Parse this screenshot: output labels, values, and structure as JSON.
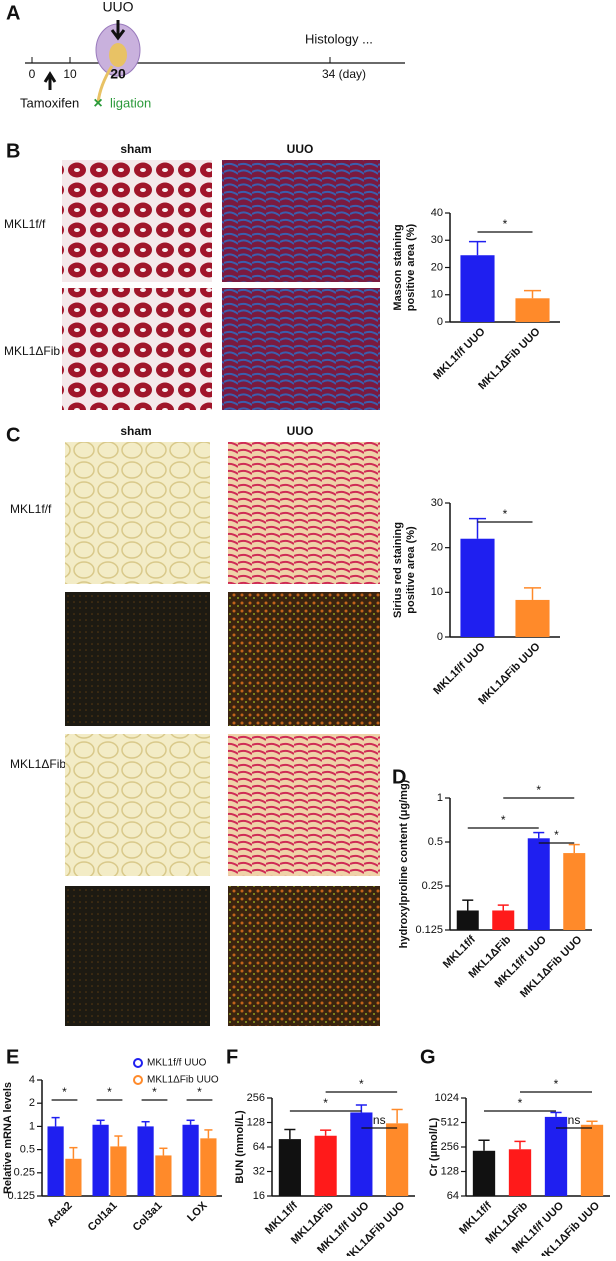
{
  "figure": {
    "panel_labels": [
      "A",
      "B",
      "C",
      "D",
      "E",
      "F",
      "G"
    ],
    "timeline": {
      "event": "UUO",
      "ticks": [
        "0",
        "10",
        "20",
        "34 (day)"
      ],
      "endpoint": "Histology ...",
      "treatment": "Tamoxifen",
      "procedure": "ligation"
    },
    "micrographs": {
      "columns": [
        "sham",
        "UUO"
      ],
      "rows": [
        "MKL1f/f",
        "MKL1ΔFib"
      ]
    }
  },
  "chart_data": [
    {
      "type": "bar",
      "y_label": [
        "Masson staining",
        "positive area (%)"
      ],
      "categories": [
        "MKL1f/f UUO",
        "MKL1ΔFib UUO"
      ],
      "values": [
        24.5,
        8.7
      ],
      "errors": [
        5,
        2.8
      ],
      "colors": [
        "#1f1ff0",
        "#ff8a2a"
      ],
      "ylim": [
        0,
        40
      ],
      "yticks": [
        0,
        10,
        20,
        30,
        40
      ],
      "annotations": [
        "*"
      ]
    },
    {
      "type": "bar",
      "y_label": [
        "Sirius red staining",
        "positive area (%)"
      ],
      "categories": [
        "MKL1f/f UUO",
        "MKL1ΔFib UUO"
      ],
      "values": [
        22,
        8.3
      ],
      "errors": [
        4.5,
        2.7
      ],
      "colors": [
        "#1f1ff0",
        "#ff8a2a"
      ],
      "ylim": [
        0,
        30
      ],
      "yticks": [
        0,
        10,
        20,
        30
      ],
      "annotations": [
        "*"
      ]
    },
    {
      "type": "bar",
      "y_label": [
        "hydroxylproline content (μg/mg)"
      ],
      "log_base": 2,
      "categories": [
        "MKL1f/f",
        "MKL1ΔFib",
        "MKL1f/f UUO",
        "MKL1ΔFib UUO"
      ],
      "values": [
        0.17,
        0.17,
        0.53,
        0.42
      ],
      "errors": [
        0.03,
        0.015,
        0.05,
        0.06
      ],
      "colors": [
        "#111111",
        "#ff1a1a",
        "#1f1ff0",
        "#ff8a2a"
      ],
      "ylim": [
        0.125,
        1
      ],
      "yticks": [
        0.125,
        0.25,
        0.5,
        1
      ],
      "annotations": [
        "*",
        "*",
        "*"
      ]
    },
    {
      "type": "grouped-bar",
      "y_label": [
        "Relative mRNA levels"
      ],
      "log_base": 2,
      "categories": [
        "Acta2",
        "Col1a1",
        "Col3a1",
        "LOX"
      ],
      "series": [
        {
          "name": "MKL1f/f UUO",
          "color": "#1f1ff0",
          "values": [
            1.0,
            1.05,
            1.0,
            1.05
          ],
          "errors": [
            0.3,
            0.15,
            0.15,
            0.15
          ]
        },
        {
          "name": "MKL1ΔFib UUO",
          "color": "#ff8a2a",
          "values": [
            0.38,
            0.55,
            0.42,
            0.7
          ],
          "errors": [
            0.15,
            0.2,
            0.1,
            0.2
          ]
        }
      ],
      "ylim": [
        0.125,
        4
      ],
      "yticks": [
        0.125,
        0.25,
        0.5,
        1,
        2,
        4
      ],
      "annotations": [
        "*",
        "*",
        "*",
        "*"
      ]
    },
    {
      "type": "bar",
      "y_label": [
        "BUN (mmol/L)"
      ],
      "log_base": 2,
      "categories": [
        "MKL1f/f",
        "MKL1ΔFib",
        "MKL1f/f UUO",
        "MKL1ΔFib UUO"
      ],
      "values": [
        80,
        88,
        170,
        125
      ],
      "errors": [
        25,
        15,
        40,
        60
      ],
      "colors": [
        "#111111",
        "#ff1a1a",
        "#1f1ff0",
        "#ff8a2a"
      ],
      "ylim": [
        16,
        256
      ],
      "yticks": [
        16,
        32,
        64,
        128,
        256
      ],
      "annotations": [
        "*",
        "*",
        "ns"
      ]
    },
    {
      "type": "bar",
      "y_label": [
        "Cr (μmol/L)"
      ],
      "log_base": 2,
      "categories": [
        "MKL1f/f",
        "MKL1ΔFib",
        "MKL1f/f UUO",
        "MKL1ΔFib UUO"
      ],
      "values": [
        230,
        240,
        600,
        480
      ],
      "errors": [
        80,
        60,
        80,
        50
      ],
      "colors": [
        "#111111",
        "#ff1a1a",
        "#1f1ff0",
        "#ff8a2a"
      ],
      "ylim": [
        64,
        1024
      ],
      "yticks": [
        64,
        128,
        256,
        512,
        1024
      ],
      "annotations": [
        "*",
        "*",
        "ns"
      ]
    }
  ]
}
